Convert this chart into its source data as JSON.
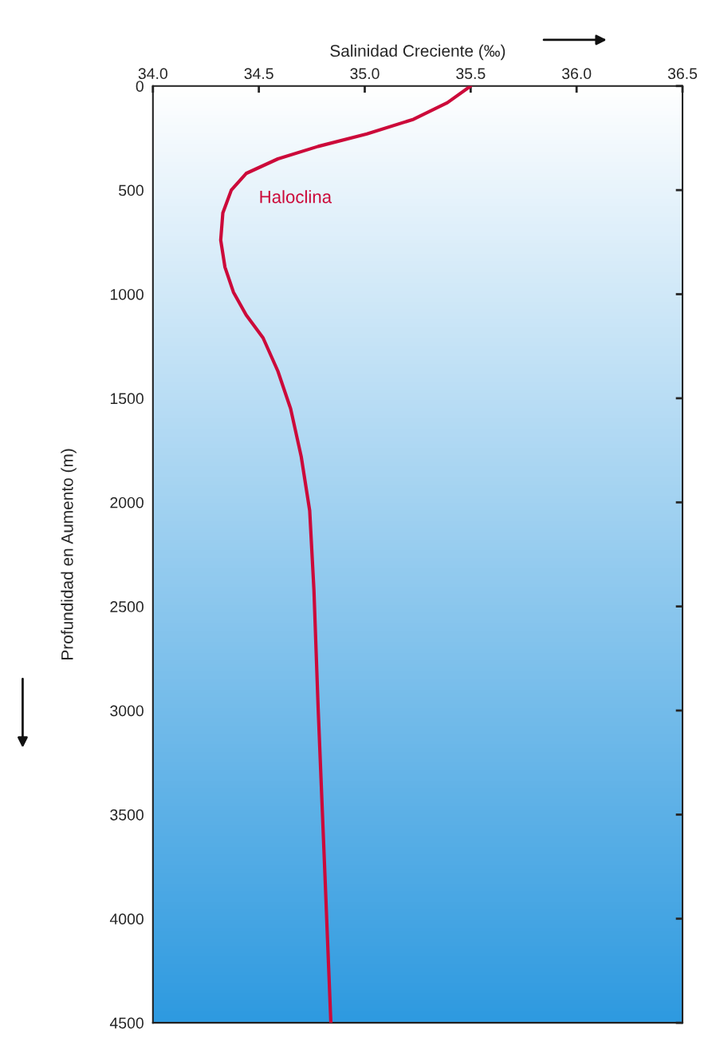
{
  "chart_data": {
    "type": "line",
    "xlabel": "Salinidad Creciente (‰)",
    "ylabel": "Profundidad en Aumento (m)",
    "x": [
      35.5,
      35.39,
      35.23,
      35.01,
      34.78,
      34.59,
      34.44,
      34.37,
      34.33,
      34.32,
      34.34,
      34.38,
      34.44,
      34.52,
      34.59,
      34.65,
      34.7,
      34.74,
      34.76,
      34.78,
      34.81,
      34.84
    ],
    "series": [
      {
        "color": "#cc0a3a",
        "values": [
          0,
          80,
          160,
          230,
          290,
          350,
          420,
          500,
          610,
          740,
          870,
          990,
          1100,
          1210,
          1370,
          1550,
          1780,
          2040,
          2420,
          2990,
          3740,
          4500
        ]
      }
    ],
    "annotations": [
      "Haloclina"
    ],
    "xlim": [
      34.0,
      36.5
    ],
    "xticks": [
      {
        "value": 34.0,
        "label": "34.0"
      },
      34.5,
      {
        "value": 35.0,
        "label": "35.0"
      },
      35.5,
      {
        "value": 36.0,
        "label": "36.0"
      },
      36.5
    ],
    "ylim": [
      4500,
      0
    ],
    "yticks": [
      0,
      500,
      1000,
      1500,
      2000,
      2500,
      3000,
      3500,
      4000,
      4500
    ],
    "grid": false,
    "legend": false,
    "marker": "none",
    "line_style": "solid"
  }
}
